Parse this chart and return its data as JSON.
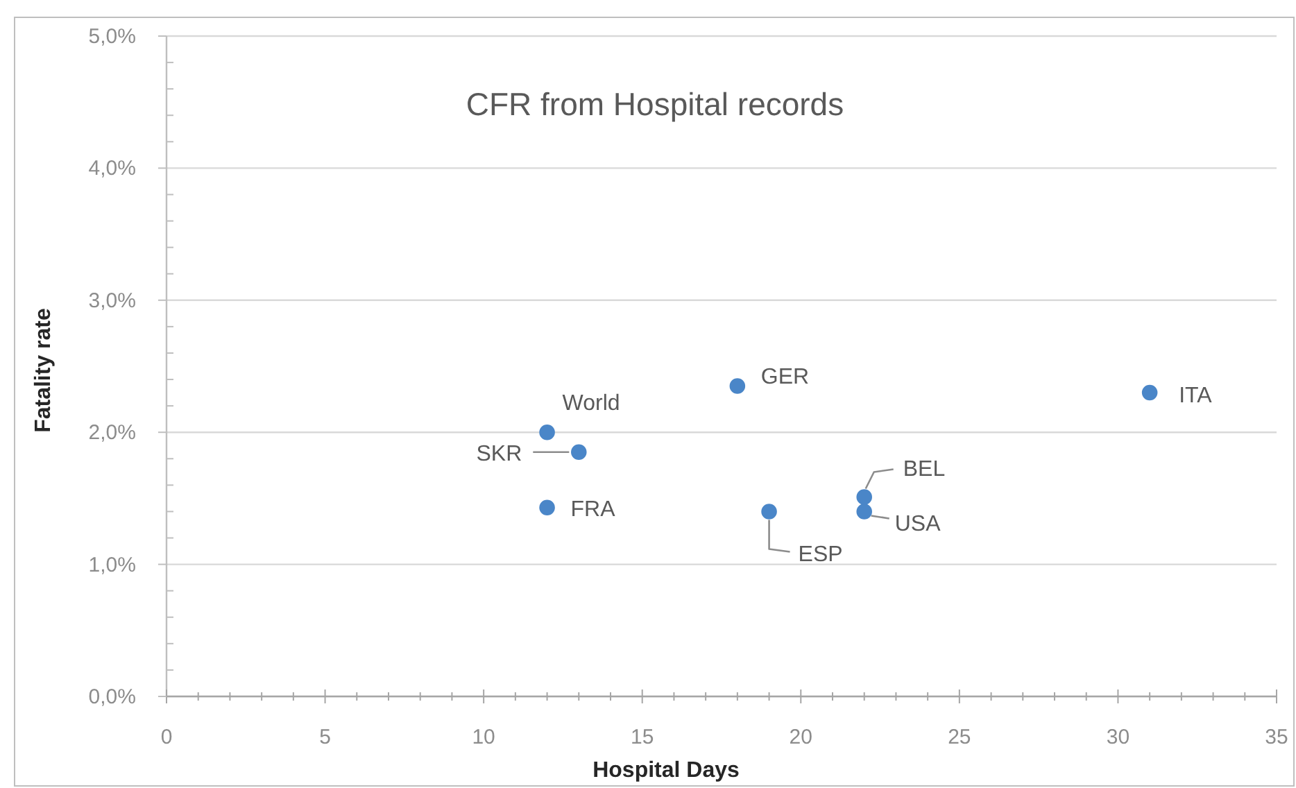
{
  "chart_data": {
    "type": "scatter",
    "title": "CFR from Hospital records",
    "xlabel": "Hospital Days",
    "ylabel": "Fatality rate",
    "x": [
      12,
      13,
      12,
      18,
      19,
      22,
      22,
      31
    ],
    "series": [
      {
        "color": "#4a86c8",
        "values": [
          2.0,
          1.85,
          1.43,
          2.35,
          1.4,
          1.51,
          1.4,
          2.3
        ]
      }
    ],
    "marker": "circle",
    "grid": "y",
    "xlim": [
      0,
      35
    ],
    "ylim": [
      0,
      5
    ],
    "xticks": [
      0,
      {
        "value": 1,
        "label": null
      },
      {
        "value": 2,
        "label": null
      },
      {
        "value": 3,
        "label": null
      },
      {
        "value": 4,
        "label": null
      },
      5,
      {
        "value": 6,
        "label": null
      },
      {
        "value": 7,
        "label": null
      },
      {
        "value": 8,
        "label": null
      },
      {
        "value": 9,
        "label": null
      },
      10,
      {
        "value": 11,
        "label": null
      },
      {
        "value": 12,
        "label": null
      },
      {
        "value": 13,
        "label": null
      },
      {
        "value": 14,
        "label": null
      },
      15,
      {
        "value": 16,
        "label": null
      },
      {
        "value": 17,
        "label": null
      },
      {
        "value": 18,
        "label": null
      },
      {
        "value": 19,
        "label": null
      },
      20,
      {
        "value": 21,
        "label": null
      },
      {
        "value": 22,
        "label": null
      },
      {
        "value": 23,
        "label": null
      },
      {
        "value": 24,
        "label": null
      },
      25,
      {
        "value": 26,
        "label": null
      },
      {
        "value": 27,
        "label": null
      },
      {
        "value": 28,
        "label": null
      },
      {
        "value": 29,
        "label": null
      },
      30,
      {
        "value": 31,
        "label": null
      },
      {
        "value": 32,
        "label": null
      },
      {
        "value": 33,
        "label": null
      },
      {
        "value": 34,
        "label": null
      },
      35
    ],
    "yticks": [
      {
        "value": 0,
        "label": "0,0%"
      },
      {
        "value": 0.2,
        "label": null
      },
      {
        "value": 0.4,
        "label": null
      },
      {
        "value": 0.6,
        "label": null
      },
      {
        "value": 0.8,
        "label": null
      },
      {
        "value": 1,
        "label": "1,0%"
      },
      {
        "value": 1.2,
        "label": null
      },
      {
        "value": 1.4,
        "label": null
      },
      {
        "value": 1.6,
        "label": null
      },
      {
        "value": 1.8,
        "label": null
      },
      {
        "value": 2,
        "label": "2,0%"
      },
      {
        "value": 2.2,
        "label": null
      },
      {
        "value": 2.4,
        "label": null
      },
      {
        "value": 2.6,
        "label": null
      },
      {
        "value": 2.8,
        "label": null
      },
      {
        "value": 3,
        "label": "3,0%"
      },
      {
        "value": 3.2,
        "label": null
      },
      {
        "value": 3.4,
        "label": null
      },
      {
        "value": 3.6,
        "label": null
      },
      {
        "value": 3.8,
        "label": null
      },
      {
        "value": 4,
        "label": "4,0%"
      },
      {
        "value": 4.2,
        "label": null
      },
      {
        "value": 4.4,
        "label": null
      },
      {
        "value": 4.6,
        "label": null
      },
      {
        "value": 4.8,
        "label": null
      },
      {
        "value": 5,
        "label": "5,0%"
      }
    ],
    "annotations": [
      {
        "text": "World",
        "x": 12,
        "y": 2.0
      },
      {
        "text": "SKR",
        "x": 13,
        "y": 1.85
      },
      {
        "text": "FRA",
        "x": 12,
        "y": 1.43
      },
      {
        "text": "GER",
        "x": 18,
        "y": 2.35
      },
      {
        "text": "ESP",
        "x": 19,
        "y": 1.4
      },
      {
        "text": "BEL",
        "x": 22,
        "y": 1.51
      },
      {
        "text": "USA",
        "x": 22,
        "y": 1.4
      },
      {
        "text": "ITA",
        "x": 31,
        "y": 2.3
      }
    ]
  }
}
